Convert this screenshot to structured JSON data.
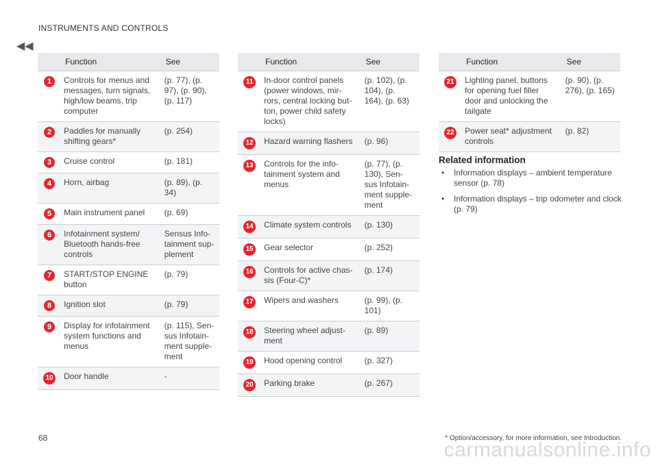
{
  "header": {
    "title": "INSTRUMENTS AND CONTROLS",
    "back_icon": "double-chevron-left-icon"
  },
  "columns": {
    "function": "Function",
    "see": "See"
  },
  "table1": [
    {
      "num": "1",
      "function": "Controls for menus and messages, turn signals, high/low beams, trip computer",
      "see": "(p. 77), (p. 97), (p. 90), (p. 117)"
    },
    {
      "num": "2",
      "function": "Paddles for manually shifting gears*",
      "see": "(p. 254)"
    },
    {
      "num": "3",
      "function": "Cruise control",
      "see": "(p. 181)"
    },
    {
      "num": "4",
      "function": "Horn, airbag",
      "see": "(p. 89), (p. 34)"
    },
    {
      "num": "5",
      "function": "Main instrument panel",
      "see": "(p. 69)"
    },
    {
      "num": "6",
      "function": "Infotainment system/ Bluetooth hands-free controls",
      "see": "Sensus Info-tainment sup-plement"
    },
    {
      "num": "7",
      "function": "START/STOP ENGINE button",
      "see": "(p. 79)"
    },
    {
      "num": "8",
      "function": "Ignition slot",
      "see": "(p. 79)"
    },
    {
      "num": "9",
      "function": "Display for infotainment system functions and menus",
      "see": "(p. 115), Sen-sus Infotain-ment supple-ment"
    },
    {
      "num": "10",
      "function": "Door handle",
      "see": "-"
    }
  ],
  "table2": [
    {
      "num": "11",
      "function": "In-door control panels (power windows, mir-rors, central locking but-ton, power child safety locks)",
      "see": "(p. 102), (p. 104), (p. 164), (p. 63)"
    },
    {
      "num": "12",
      "function": "Hazard warning flashers",
      "see": "(p. 96)"
    },
    {
      "num": "13",
      "function": "Controls for the info-tainment system and menus",
      "see": "(p. 77), (p. 130), Sen-sus Infotain-ment supple-ment"
    },
    {
      "num": "14",
      "function": "Climate system controls",
      "see": "(p. 130)"
    },
    {
      "num": "15",
      "function": "Gear selector",
      "see": "(p. 252)"
    },
    {
      "num": "16",
      "function": "Controls for active chas-sis (Four-C)*",
      "see": "(p. 174)"
    },
    {
      "num": "17",
      "function": "Wipers and washers",
      "see": "(p. 99), (p. 101)"
    },
    {
      "num": "18",
      "function": "Steering wheel adjust-ment",
      "see": "(p. 89)"
    },
    {
      "num": "19",
      "function": "Hood opening control",
      "see": "(p. 327)"
    },
    {
      "num": "20",
      "function": "Parking brake",
      "see": "(p. 267)"
    }
  ],
  "table3": [
    {
      "num": "21",
      "function": "Lighting panel, buttons for opening fuel filler door and unlocking the tailgate",
      "see": "(p. 90), (p. 276), (p. 165)"
    },
    {
      "num": "22",
      "function": "Power seat* adjustment controls",
      "see": "(p. 82)"
    }
  ],
  "related": {
    "heading": "Related information",
    "items": [
      "Information displays – ambient temperature sensor (p. 78)",
      "Information displays – trip odometer and clock (p. 79)"
    ]
  },
  "footer": {
    "page_number": "68",
    "footnote": "* Option/accessory, for more information, see Introduction.",
    "watermark": "carmanualsonline.info"
  },
  "colors": {
    "badge": "#e3262f",
    "header_bg": "#e7e9ec",
    "row_alt": "#f3f4f6"
  }
}
